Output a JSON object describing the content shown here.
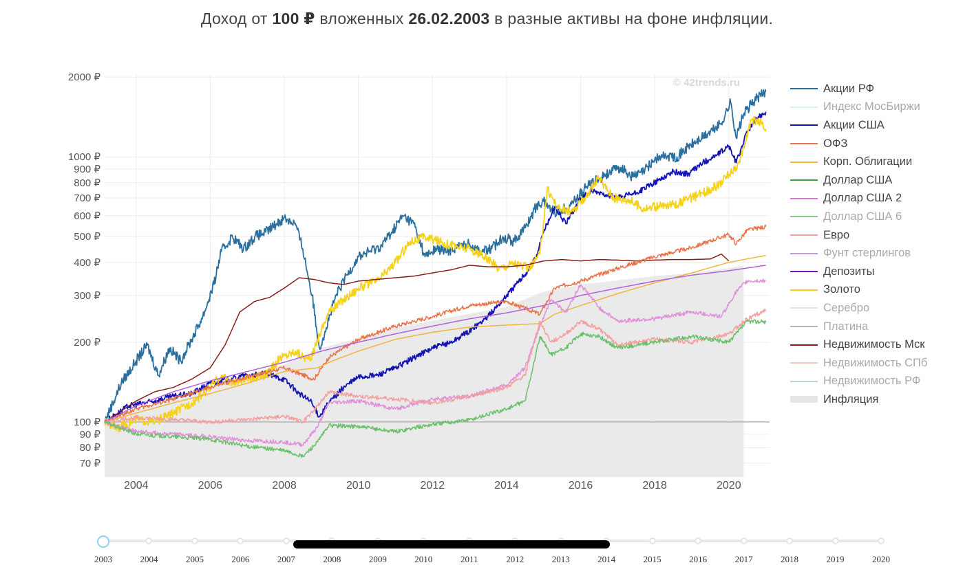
{
  "title": {
    "prefix": "Доход от ",
    "amount": "100 ₽",
    "middle": " вложенных ",
    "date": "26.02.2003",
    "suffix": " в разные активы на фоне инфляции."
  },
  "watermark": "© 42trends.ru",
  "legend": [
    {
      "label": "Акции РФ",
      "color": "#2a6f9e",
      "faded": false
    },
    {
      "label": "Индекс МосБиржи",
      "color": "#dfeef5",
      "faded": true
    },
    {
      "label": "Акции США",
      "color": "#1414b4",
      "faded": false
    },
    {
      "label": "ОФЗ",
      "color": "#e8734a",
      "faded": false
    },
    {
      "label": "Корп. Облигации",
      "color": "#f0b53a",
      "faded": false
    },
    {
      "label": "Доллар США",
      "color": "#3aa03a",
      "faded": false
    },
    {
      "label": "Доллар США 2",
      "color": "#d87ad0",
      "faded": false
    },
    {
      "label": "Доллар США 6",
      "color": "#8bc98b",
      "faded": true
    },
    {
      "label": "Евро",
      "color": "#f2a0a0",
      "faded": false
    },
    {
      "label": "Фунт стерлингов",
      "color": "#c89ad8",
      "faded": true
    },
    {
      "label": "Депозиты",
      "color": "#7a1aa8",
      "faded": false
    },
    {
      "label": "Золото",
      "color": "#f5d21a",
      "faded": false
    },
    {
      "label": "Серебро",
      "color": "#e2e2e2",
      "faded": true
    },
    {
      "label": "Платина",
      "color": "#b4b4b4",
      "faded": true
    },
    {
      "label": "Недвижимость Мск",
      "color": "#8a1c1c",
      "faded": false
    },
    {
      "label": "Недвижимость СПб",
      "color": "#f0c8c0",
      "faded": true
    },
    {
      "label": "Недвижимость РФ",
      "color": "#b8dcc8",
      "faded": true
    },
    {
      "label": "Инфляция",
      "color": "#e6e6e6",
      "faded": false,
      "area": true
    }
  ],
  "chart_data": {
    "type": "line",
    "yscale": "log",
    "ylim": [
      62,
      2050
    ],
    "xlim": [
      2003.15,
      2021.1
    ],
    "yticks": [
      {
        "value": 2000,
        "label": "2000 ₽"
      },
      {
        "value": 1000,
        "label": "1000 ₽"
      },
      {
        "value": 900,
        "label": "900 ₽"
      },
      {
        "value": 800,
        "label": "800 ₽"
      },
      {
        "value": 700,
        "label": "700 ₽"
      },
      {
        "value": 600,
        "label": "600 ₽"
      },
      {
        "value": 500,
        "label": "500 ₽"
      },
      {
        "value": 400,
        "label": "400 ₽"
      },
      {
        "value": 300,
        "label": "300 ₽"
      },
      {
        "value": 200,
        "label": "200 ₽"
      },
      {
        "value": 100,
        "label": "100 ₽"
      },
      {
        "value": 90,
        "label": "90 ₽"
      },
      {
        "value": 80,
        "label": "80 ₽"
      },
      {
        "value": 70,
        "label": "70 ₽"
      }
    ],
    "xticks": [
      {
        "value": 2004,
        "label": "2004"
      },
      {
        "value": 2006,
        "label": "2006"
      },
      {
        "value": 2008,
        "label": "2008"
      },
      {
        "value": 2010,
        "label": "2010"
      },
      {
        "value": 2012,
        "label": "2012"
      },
      {
        "value": 2014,
        "label": "2014"
      },
      {
        "value": 2016,
        "label": "2016"
      },
      {
        "value": 2018,
        "label": "2018"
      },
      {
        "value": 2020,
        "label": "2020"
      }
    ],
    "grid": true,
    "legend_position": "right",
    "series": [
      {
        "name": "Инфляция",
        "color": "#e6e6e6",
        "kind": "area",
        "x": [
          2003.15,
          2004,
          2005,
          2006,
          2007,
          2008,
          2009,
          2010,
          2011,
          2012,
          2013,
          2014,
          2015,
          2016,
          2017,
          2018,
          2019,
          2020,
          2020.4
        ],
        "y": [
          100,
          111,
          123,
          135,
          148,
          165,
          190,
          207,
          226,
          241,
          256,
          272,
          310,
          330,
          342,
          355,
          365,
          380,
          390
        ]
      },
      {
        "name": "Платина",
        "color": "#b4b4b4",
        "x": [
          2003.15,
          2021.1
        ],
        "y": [
          100,
          100
        ]
      },
      {
        "name": "Акции РФ",
        "color": "#2a6f9e",
        "x": [
          2003.15,
          2003.6,
          2004.0,
          2004.3,
          2004.6,
          2004.9,
          2005.2,
          2005.5,
          2005.8,
          2006.1,
          2006.3,
          2006.6,
          2006.9,
          2007.2,
          2007.5,
          2007.8,
          2008.0,
          2008.3,
          2008.5,
          2008.75,
          2008.95,
          2009.1,
          2009.4,
          2009.7,
          2010.0,
          2010.3,
          2010.6,
          2010.9,
          2011.2,
          2011.5,
          2011.8,
          2012.1,
          2012.4,
          2012.7,
          2013.0,
          2013.3,
          2013.6,
          2013.9,
          2014.2,
          2014.5,
          2014.8,
          2015.0,
          2015.3,
          2015.6,
          2015.9,
          2016.2,
          2016.5,
          2016.8,
          2017.1,
          2017.4,
          2017.7,
          2018.0,
          2018.3,
          2018.6,
          2018.9,
          2019.2,
          2019.5,
          2019.8,
          2020.05,
          2020.2,
          2020.4,
          2020.7,
          2021.0
        ],
        "y": [
          100,
          140,
          170,
          195,
          150,
          190,
          170,
          205,
          250,
          330,
          440,
          500,
          450,
          500,
          520,
          560,
          590,
          560,
          450,
          300,
          190,
          220,
          300,
          360,
          420,
          440,
          460,
          520,
          600,
          560,
          420,
          450,
          440,
          460,
          470,
          440,
          450,
          500,
          480,
          540,
          650,
          680,
          620,
          640,
          700,
          780,
          830,
          880,
          910,
          840,
          880,
          980,
          1010,
          1000,
          1090,
          1160,
          1240,
          1340,
          1610,
          1180,
          1450,
          1640,
          1760
        ]
      },
      {
        "name": "Акции США",
        "color": "#1414b4",
        "x": [
          2003.15,
          2003.8,
          2004.5,
          2005.0,
          2005.5,
          2006.0,
          2006.5,
          2007.0,
          2007.5,
          2008.0,
          2008.4,
          2008.7,
          2008.95,
          2009.2,
          2009.6,
          2010.0,
          2010.5,
          2011.0,
          2011.5,
          2012.0,
          2012.5,
          2013.0,
          2013.5,
          2014.0,
          2014.5,
          2014.8,
          2015.0,
          2015.3,
          2015.6,
          2016.0,
          2016.3,
          2016.7,
          2017.0,
          2017.5,
          2018.0,
          2018.5,
          2018.9,
          2019.3,
          2019.7,
          2020.0,
          2020.2,
          2020.5,
          2020.8,
          2021.0
        ],
        "y": [
          100,
          115,
          120,
          125,
          128,
          140,
          145,
          150,
          152,
          145,
          128,
          120,
          105,
          118,
          135,
          148,
          150,
          160,
          175,
          190,
          200,
          220,
          250,
          300,
          360,
          420,
          520,
          650,
          560,
          700,
          740,
          720,
          700,
          730,
          800,
          880,
          860,
          950,
          1020,
          1100,
          950,
          1250,
          1420,
          1480
        ]
      },
      {
        "name": "Золото",
        "color": "#f5d21a",
        "x": [
          2003.15,
          2003.5,
          2004.0,
          2004.5,
          2005.0,
          2005.5,
          2006.0,
          2006.3,
          2006.6,
          2007.0,
          2007.5,
          2007.9,
          2008.3,
          2008.7,
          2008.95,
          2009.2,
          2009.6,
          2010.0,
          2010.5,
          2011.0,
          2011.4,
          2011.8,
          2012.2,
          2012.6,
          2013.0,
          2013.4,
          2013.8,
          2014.2,
          2014.6,
          2014.9,
          2015.1,
          2015.4,
          2015.8,
          2016.1,
          2016.5,
          2016.9,
          2017.3,
          2017.7,
          2018.1,
          2018.5,
          2018.9,
          2019.3,
          2019.7,
          2020.0,
          2020.3,
          2020.6,
          2020.9,
          2021.0
        ],
        "y": [
          100,
          95,
          102,
          100,
          108,
          118,
          135,
          150,
          140,
          145,
          150,
          175,
          185,
          170,
          215,
          260,
          290,
          320,
          340,
          400,
          480,
          500,
          480,
          460,
          450,
          420,
          380,
          400,
          380,
          430,
          760,
          640,
          620,
          700,
          830,
          700,
          690,
          640,
          650,
          660,
          690,
          730,
          780,
          860,
          950,
          1380,
          1350,
          1250
        ]
      },
      {
        "name": "Недвижимость Мск",
        "color": "#8a1c1c",
        "x": [
          2003.15,
          2004.0,
          2004.5,
          2005.0,
          2005.5,
          2006.0,
          2006.4,
          2006.8,
          2007.2,
          2007.6,
          2008.0,
          2008.4,
          2008.8,
          2009.2,
          2009.6,
          2010.0,
          2010.5,
          2011.0,
          2011.5,
          2012.0,
          2012.5,
          2013.0,
          2013.5,
          2014.0,
          2014.5,
          2015.0,
          2015.5,
          2016.0,
          2016.5,
          2017.0,
          2017.5,
          2018.0,
          2018.5,
          2019.0,
          2019.5,
          2019.8,
          2020.0
        ],
        "y": [
          100,
          120,
          130,
          135,
          145,
          160,
          195,
          260,
          285,
          295,
          320,
          350,
          345,
          335,
          330,
          340,
          345,
          350,
          355,
          365,
          375,
          390,
          385,
          385,
          390,
          405,
          410,
          405,
          410,
          408,
          405,
          408,
          410,
          410,
          412,
          430,
          405
        ]
      },
      {
        "name": "ОФЗ",
        "color": "#e8734a",
        "x": [
          2003.15,
          2004,
          2005,
          2006,
          2007,
          2008,
          2008.8,
          2009.2,
          2010,
          2011,
          2012,
          2013,
          2014,
          2014.9,
          2015.3,
          2016,
          2017,
          2018,
          2019,
          2020,
          2020.2,
          2020.5,
          2021
        ],
        "y": [
          100,
          112,
          122,
          135,
          148,
          160,
          145,
          175,
          205,
          230,
          250,
          275,
          285,
          255,
          320,
          340,
          380,
          420,
          455,
          510,
          470,
          530,
          545
        ]
      },
      {
        "name": "Корп. Облигации",
        "color": "#f0b53a",
        "x": [
          2003.15,
          2004,
          2005,
          2006,
          2007,
          2008,
          2008.9,
          2009.3,
          2010,
          2011,
          2012,
          2013,
          2014,
          2014.9,
          2015.3,
          2016,
          2017,
          2018,
          2019,
          2020,
          2021
        ],
        "y": [
          100,
          108,
          118,
          128,
          140,
          155,
          160,
          170,
          185,
          205,
          218,
          228,
          232,
          235,
          255,
          275,
          305,
          335,
          365,
          400,
          425
        ]
      },
      {
        "name": "Депозиты",
        "color": "#b060d8",
        "x": [
          2003.15,
          2004,
          2005,
          2006,
          2007,
          2008,
          2009,
          2010,
          2011,
          2012,
          2013,
          2014,
          2015,
          2016,
          2017,
          2018,
          2019,
          2020,
          2021
        ],
        "y": [
          100,
          115,
          130,
          143,
          155,
          168,
          185,
          200,
          215,
          230,
          245,
          258,
          275,
          300,
          320,
          340,
          358,
          372,
          390
        ]
      },
      {
        "name": "Доллар США 2",
        "color": "#e090d8",
        "x": [
          2003.15,
          2004,
          2005,
          2006,
          2007,
          2008,
          2008.5,
          2008.9,
          2009.2,
          2010,
          2011,
          2012,
          2013,
          2014,
          2014.5,
          2014.9,
          2015.2,
          2015.6,
          2016.0,
          2016.5,
          2017,
          2018,
          2019,
          2019.8,
          2020.2,
          2020.5,
          2021
        ],
        "y": [
          100,
          92,
          90,
          88,
          85,
          84,
          82,
          96,
          118,
          120,
          112,
          122,
          125,
          138,
          160,
          230,
          290,
          260,
          330,
          270,
          240,
          245,
          260,
          250,
          310,
          340,
          340
        ]
      },
      {
        "name": "Евро",
        "color": "#f2a0a0",
        "x": [
          2003.15,
          2004,
          2005,
          2006,
          2007,
          2008,
          2008.5,
          2008.9,
          2009.2,
          2010,
          2011,
          2012,
          2013,
          2014,
          2014.5,
          2014.9,
          2015.2,
          2015.6,
          2016.0,
          2016.5,
          2017,
          2018,
          2019,
          2020,
          2020.5,
          2021
        ],
        "y": [
          100,
          104,
          102,
          100,
          102,
          105,
          100,
          115,
          130,
          125,
          122,
          118,
          125,
          135,
          150,
          240,
          200,
          215,
          240,
          225,
          195,
          205,
          200,
          215,
          245,
          265
        ]
      },
      {
        "name": "Доллар США",
        "color": "#6ac06a",
        "x": [
          2003.15,
          2004,
          2005,
          2006,
          2007,
          2008,
          2008.5,
          2008.9,
          2009.2,
          2010,
          2011,
          2012,
          2013,
          2014,
          2014.5,
          2014.9,
          2015.2,
          2015.6,
          2016.0,
          2016.5,
          2017,
          2018,
          2019,
          2020,
          2020.5,
          2021
        ],
        "y": [
          100,
          90,
          88,
          86,
          81,
          78,
          74,
          84,
          97,
          96,
          92,
          98,
          102,
          112,
          120,
          210,
          180,
          190,
          215,
          210,
          190,
          200,
          210,
          200,
          240,
          238
        ]
      }
    ]
  },
  "slider": {
    "labels": [
      "2003",
      "2004",
      "2005",
      "2006",
      "2007",
      "2008",
      "2009",
      "2010",
      "2011",
      "2012",
      "2013",
      "2014",
      "2015",
      "2016",
      "2017",
      "2018",
      "2019",
      "2020"
    ]
  }
}
